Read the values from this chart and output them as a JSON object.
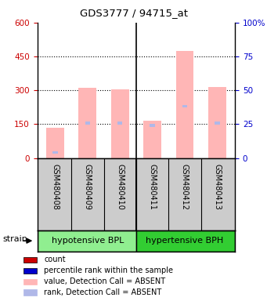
{
  "title": "GDS3777 / 94715_at",
  "samples": [
    "GSM480408",
    "GSM480409",
    "GSM480410",
    "GSM480411",
    "GSM480412",
    "GSM480413"
  ],
  "groups": [
    "hypotensive BPL",
    "hypertensive BPH"
  ],
  "group_colors": [
    "#90ee90",
    "#32cd32"
  ],
  "bar_values": [
    135,
    310,
    305,
    165,
    475,
    315
  ],
  "rank_values": [
    25,
    155,
    155,
    145,
    230,
    155
  ],
  "ylim_left": [
    0,
    600
  ],
  "ylim_right": [
    0,
    100
  ],
  "yticks_left": [
    0,
    150,
    300,
    450,
    600
  ],
  "yticks_right": [
    0,
    25,
    50,
    75,
    100
  ],
  "bar_color": "#ffb6b6",
  "rank_color": "#b0b8e8",
  "legend_items": [
    {
      "label": "count",
      "color": "#cc0000"
    },
    {
      "label": "percentile rank within the sample",
      "color": "#0000cc"
    },
    {
      "label": "value, Detection Call = ABSENT",
      "color": "#ffb6b6"
    },
    {
      "label": "rank, Detection Call = ABSENT",
      "color": "#b0b8e8"
    }
  ],
  "bg_color": "#ffffff",
  "label_area_bg": "#cccccc",
  "left_tick_color": "#cc0000",
  "right_tick_color": "#0000cc"
}
